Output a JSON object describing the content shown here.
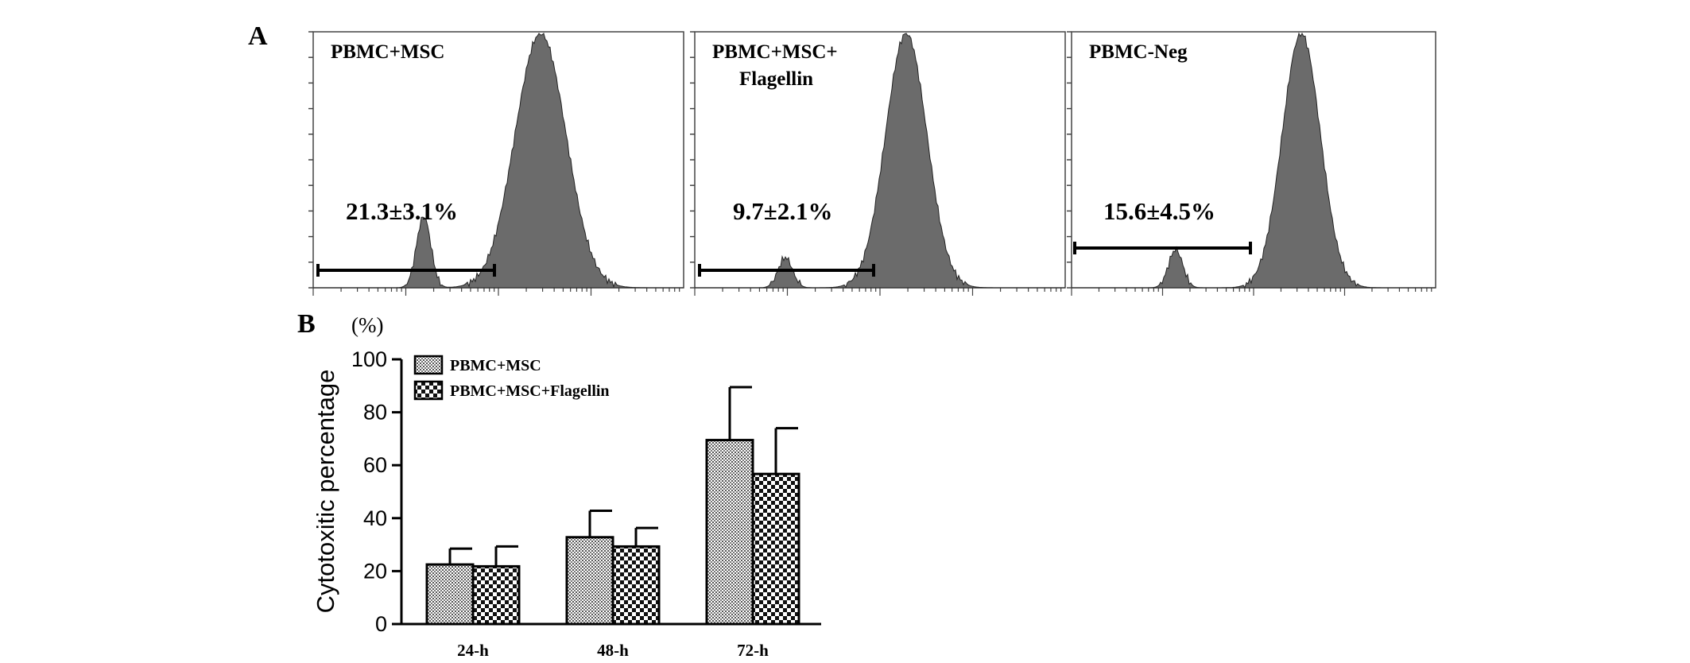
{
  "panels": {
    "a_letter": "A",
    "b_letter": "B"
  },
  "chart_data": [
    {
      "type": "histogram",
      "panel": "A",
      "histograms": [
        {
          "label_lines": [
            "PBMC+MSC"
          ],
          "percent_label": "21.3±3.1%"
        },
        {
          "label_lines": [
            "PBMC+MSC+",
            "Flagellin"
          ],
          "percent_label": "9.7±2.1%"
        },
        {
          "label_lines": [
            "PBMC-Neg"
          ],
          "percent_label": "15.6±4.5%"
        }
      ],
      "fill_color": "#6b6b6b"
    },
    {
      "type": "bar",
      "panel": "B",
      "unit_label": "(%)",
      "ylabel": "Cytotoxitic percentage",
      "ylim": [
        0,
        100
      ],
      "yticks": [
        0,
        20,
        40,
        60,
        80,
        100
      ],
      "categories": [
        "24-h",
        "48-h",
        "72-h"
      ],
      "series": [
        {
          "name": "PBMC+MSC",
          "pattern": "fine-dots",
          "values": [
            22.5,
            32.8,
            69.5
          ],
          "errors": [
            6.0,
            10.0,
            20.0
          ]
        },
        {
          "name": "PBMC+MSC+Flagellin",
          "pattern": "checker",
          "values": [
            21.8,
            29.3,
            56.7
          ],
          "errors": [
            7.5,
            7.0,
            17.3
          ]
        }
      ],
      "legend_position": "top-left",
      "grid": false
    }
  ]
}
